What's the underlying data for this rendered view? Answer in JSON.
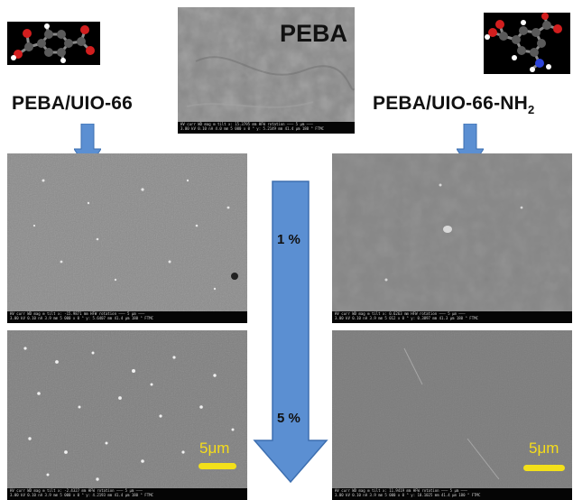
{
  "labels": {
    "left_material": "PEBA/UIO-66",
    "right_material_main": "PEBA/UIO-66-NH",
    "right_material_sub": "2",
    "center_material": "PEBA",
    "loading_low": "1 %",
    "loading_high": "5 %",
    "scale_text": "5μm"
  },
  "panels": {
    "peba": {
      "bar_line1": "   HV    curr   WD   mag ⊞  tilt   x: 15.3795 mm   HFW    rotation   ——— 5 μm ———",
      "bar_line2": "3.00 kV  0.10 nA  4.0 mm  5 000 x  0 °   y: 5.2149 mm  41.4 μm  180 °           FTMC"
    },
    "uio66_1": {
      "bar_line1": "   HV    curr   WD   mag ⊞  tilt   x: -15.9871 mm   HFW    rotation   ——— 5 μm ———",
      "bar_line2": "3.00 kV  0.10 nA  3.9 mm  5 000 x  0 °   y: 5.6407 mm  41.4 μm  180 °           FTMC"
    },
    "uio66nh2_1": {
      "bar_line1": "   HV    curr   WD   mag ⊞  tilt   x: 0.6263 mm   HFW    rotation   ——— 5 μm ———",
      "bar_line2": "3.00 kV  0.10 nA  3.9 mm  5 012 x  0 °   y: 0.3897 mm  41.3 μm  180 °           FTMC"
    },
    "uio66_5": {
      "bar_line1": "   HV    curr   WD   mag ⊞  tilt   x: -2.4327 mm   HFW    rotation   ——— 5 μm ———",
      "bar_line2": "3.00 kV  0.10 nA  3.9 mm  5 000 x  0 °   y: 4.2193 mm  41.4 μm  180 °           FTMC"
    },
    "uio66nh2_5": {
      "bar_line1": "   HV    curr   WD   mag ⊞  tilt   x: 11.9419 mm   HFW    rotation   ——— 5 μm ———",
      "bar_line2": "3.00 kV  0.10 nA  3.9 mm  5 000 x  0 °   y: 10.1025 mm  41.4 μm  180 °           FTMC"
    }
  },
  "colors": {
    "arrow_fill": "#5b8fd2",
    "arrow_stroke": "#3d6fb0",
    "scale_bar": "#f3e01a",
    "carbon_atom": "#5a5a5a",
    "oxygen_atom": "#d21e1e",
    "hydrogen_atom": "#ffffff",
    "nitrogen_atom": "#2c43d8"
  },
  "icons": {
    "left_molecule": "terephthalic-acid-molecule",
    "right_molecule": "aminoterephthalic-acid-molecule"
  }
}
